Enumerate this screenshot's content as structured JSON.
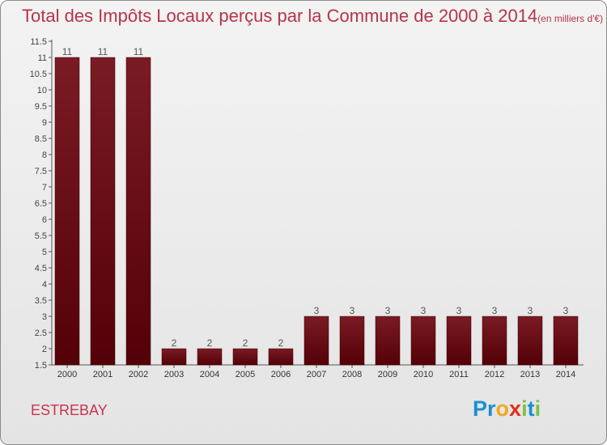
{
  "title": {
    "main": "Total des Impôts Locaux perçus par la Commune de 2000 à 2014",
    "unit": "(en milliers d'€)"
  },
  "commune": "ESTREBAY",
  "logo": {
    "letters": [
      {
        "ch": "P",
        "color": "#1b8ed2"
      },
      {
        "ch": "r",
        "color": "#1b8ed2"
      },
      {
        "ch": "o",
        "color": "#f2a71e"
      },
      {
        "ch": "x",
        "color": "#e0301e"
      },
      {
        "ch": "i",
        "color": "#7cc242"
      },
      {
        "ch": "t",
        "color": "#1b8ed2"
      },
      {
        "ch": "i",
        "color": "#7cc242"
      }
    ]
  },
  "chart_data": {
    "type": "bar",
    "categories": [
      "2000",
      "2001",
      "2002",
      "2003",
      "2004",
      "2005",
      "2006",
      "2007",
      "2008",
      "2009",
      "2010",
      "2011",
      "2012",
      "2013",
      "2014"
    ],
    "values": [
      11,
      11,
      11,
      2,
      2,
      2,
      2,
      3,
      3,
      3,
      3,
      3,
      3,
      3,
      3
    ],
    "data_labels": [
      "11",
      "11",
      "11",
      "2",
      "2",
      "2",
      "2",
      "3",
      "3",
      "3",
      "3",
      "3",
      "3",
      "3",
      "3"
    ],
    "ylim": [
      1.5,
      11.5
    ],
    "yticks": [
      "1.5",
      "2",
      "2.5",
      "3",
      "3.5",
      "4",
      "4.5",
      "5",
      "5.5",
      "6",
      "6.5",
      "7",
      "7.5",
      "8",
      "8.5",
      "9",
      "9.5",
      "10",
      "10.5",
      "11",
      "11.5"
    ],
    "grid": false,
    "bar_color": "#7a1b24",
    "bar_color_dark": "#540007"
  }
}
